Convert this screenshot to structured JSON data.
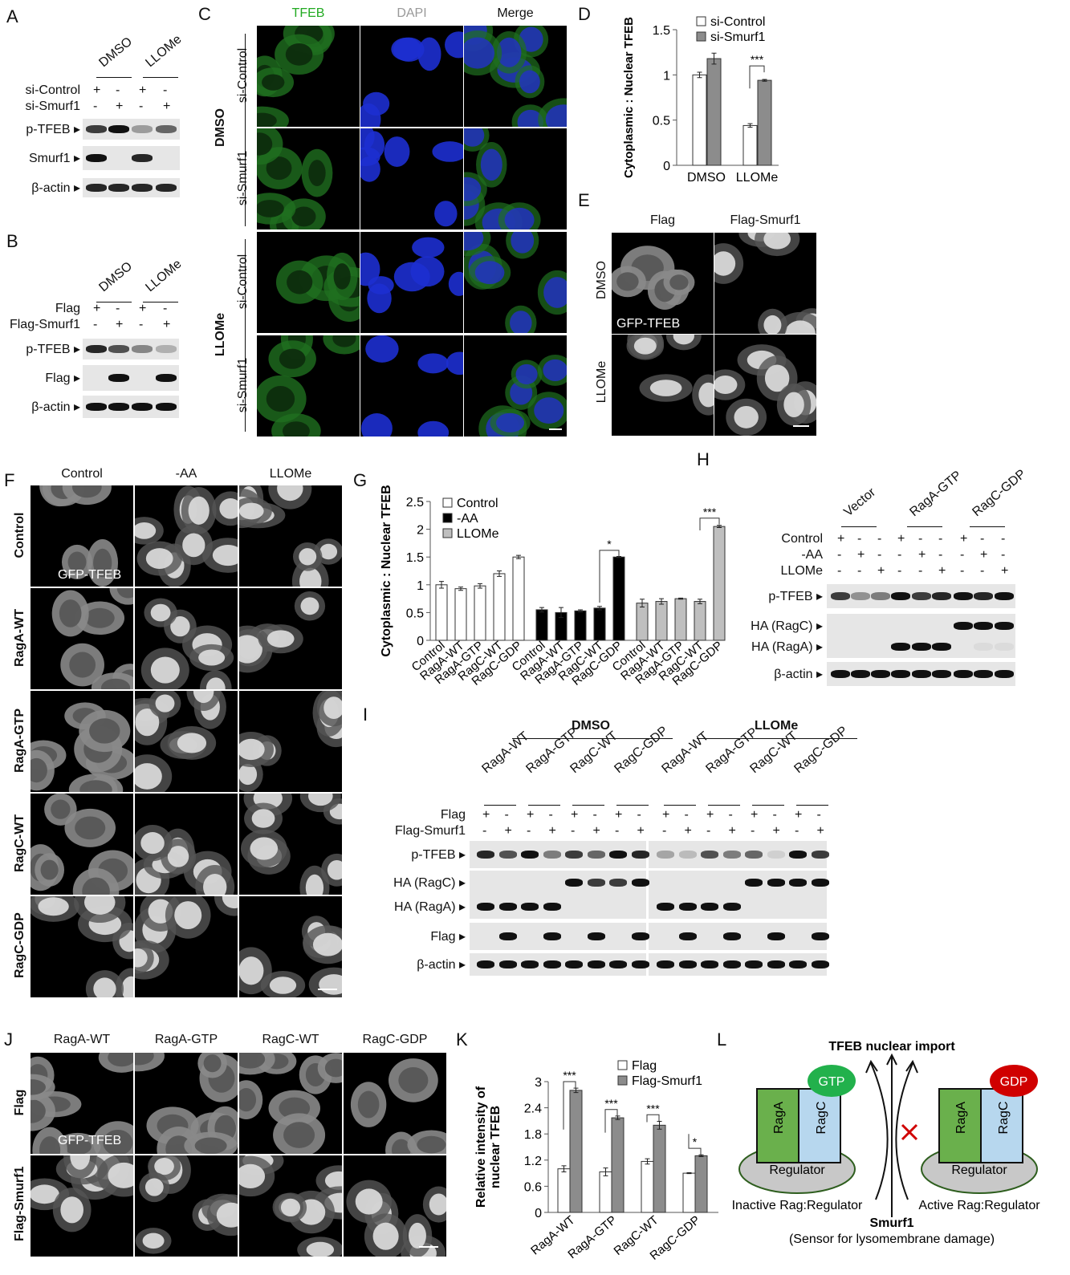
{
  "panels": {
    "A": "A",
    "B": "B",
    "C": "C",
    "D": "D",
    "E": "E",
    "F": "F",
    "G": "G",
    "H": "H",
    "I": "I",
    "J": "J",
    "K": "K",
    "L": "L"
  },
  "A": {
    "groups": [
      "DMSO",
      "LLOMe"
    ],
    "rows": [
      {
        "label": "si-Control",
        "signs": [
          "+",
          "-",
          "+",
          "-"
        ]
      },
      {
        "label": "si-Smurf1",
        "signs": [
          "-",
          "+",
          "-",
          "+"
        ]
      }
    ],
    "blots": [
      {
        "label": "p-TFEB",
        "bands": [
          0.8,
          1,
          0.35,
          0.6
        ]
      },
      {
        "label": "Smurf1",
        "bands": [
          1,
          0,
          0.9,
          0
        ]
      },
      {
        "label": "β-actin",
        "bands": [
          0.9,
          0.9,
          0.9,
          0.9
        ]
      }
    ]
  },
  "B": {
    "groups": [
      "DMSO",
      "LLOMe"
    ],
    "rows": [
      {
        "label": "Flag",
        "signs": [
          "+",
          "-",
          "+",
          "-"
        ]
      },
      {
        "label": "Flag-Smurf1",
        "signs": [
          "-",
          "+",
          "-",
          "+"
        ]
      }
    ],
    "blots": [
      {
        "label": "p-TFEB",
        "bands": [
          0.9,
          0.7,
          0.45,
          0.25
        ]
      },
      {
        "label": "Flag",
        "bands": [
          0,
          1,
          0,
          1
        ]
      },
      {
        "label": "β-actin",
        "bands": [
          1,
          1,
          1,
          1
        ]
      }
    ]
  },
  "C": {
    "columns": [
      {
        "label": "TFEB",
        "color": "#22aa22"
      },
      {
        "label": "DAPI",
        "color": "#999999"
      },
      {
        "label": "Merge",
        "color": "#111111"
      }
    ],
    "treatments": [
      "DMSO",
      "LLOMe"
    ],
    "rows": [
      "si-Control",
      "si-Smurf1",
      "si-Control",
      "si-Smurf1"
    ]
  },
  "E": {
    "columns": [
      "Flag",
      "Flag-Smurf1"
    ],
    "rows": [
      "DMSO",
      "LLOMe"
    ],
    "inset": "GFP-TFEB"
  },
  "F": {
    "columns": [
      "Control",
      "-AA",
      "LLOMe"
    ],
    "rows": [
      "Control",
      "RagA-WT",
      "RagA-GTP",
      "RagC-WT",
      "RagC-GDP"
    ],
    "inset": "GFP-TFEB"
  },
  "H": {
    "groups": [
      "Vector",
      "RagA-GTP",
      "RagC-GDP"
    ],
    "rows": [
      {
        "label": "Control",
        "signs": [
          "+",
          "-",
          "-",
          "+",
          "-",
          "-",
          "+",
          "-",
          "-"
        ]
      },
      {
        "label": "-AA",
        "signs": [
          "-",
          "+",
          "-",
          "-",
          "+",
          "-",
          "-",
          "+",
          "-"
        ]
      },
      {
        "label": "LLOMe",
        "signs": [
          "-",
          "-",
          "+",
          "-",
          "-",
          "+",
          "-",
          "-",
          "+"
        ]
      }
    ],
    "blots": [
      {
        "label": "p-TFEB",
        "bands": [
          0.8,
          0.4,
          0.5,
          1,
          0.8,
          0.9,
          1,
          0.9,
          1
        ]
      },
      {
        "label": "HA (RagC)",
        "bands": [
          0,
          0,
          0,
          0,
          0,
          0,
          1,
          1,
          1
        ]
      },
      {
        "label": "HA (RagA)",
        "bands": [
          0,
          0,
          0,
          1,
          1,
          1,
          0,
          0.05,
          0.05
        ]
      },
      {
        "label": "β-actin",
        "bands": [
          1,
          1,
          1,
          1,
          1,
          1,
          1,
          1,
          1
        ]
      }
    ]
  },
  "I": {
    "treatments": [
      "DMSO",
      "LLOMe"
    ],
    "constructs": [
      "RagA-WT",
      "RagA-GTP",
      "RagC-WT",
      "RagC-GDP",
      "RagA-WT",
      "RagA-GTP",
      "RagC-WT",
      "RagC-GDP"
    ],
    "rows": [
      {
        "label": "Flag",
        "signs": [
          "+",
          "-",
          "+",
          "-",
          "+",
          "-",
          "+",
          "-",
          "+",
          "-",
          "+",
          "-",
          "+",
          "-",
          "+",
          "-"
        ]
      },
      {
        "label": "Flag-Smurf1",
        "signs": [
          "-",
          "+",
          "-",
          "+",
          "-",
          "+",
          "-",
          "+",
          "-",
          "+",
          "-",
          "+",
          "-",
          "+",
          "-",
          "+"
        ]
      }
    ],
    "blots": [
      {
        "label": "p-TFEB",
        "bands": [
          0.9,
          0.7,
          1,
          0.5,
          0.8,
          0.6,
          1,
          0.9,
          0.3,
          0.2,
          0.7,
          0.5,
          0.6,
          0.1,
          1,
          0.8
        ]
      },
      {
        "label": "HA (RagC)",
        "bands": [
          0,
          0,
          0,
          0,
          1,
          0.8,
          0.8,
          1,
          0,
          0,
          0,
          0,
          1,
          1,
          1,
          1
        ]
      },
      {
        "label": "HA (RagA)",
        "bands": [
          1,
          1,
          1,
          1,
          0,
          0,
          0,
          0,
          1,
          1,
          1,
          1,
          0,
          0,
          0,
          0
        ]
      },
      {
        "label": "Flag",
        "bands": [
          0,
          1,
          0,
          1,
          0,
          1,
          0,
          1,
          0,
          1,
          0,
          1,
          0,
          1,
          0,
          1
        ]
      },
      {
        "label": "β-actin",
        "bands": [
          1,
          1,
          1,
          1,
          1,
          1,
          1,
          1,
          1,
          1,
          1,
          1,
          1,
          1,
          1,
          1
        ]
      }
    ]
  },
  "J": {
    "columns": [
      "RagA-WT",
      "RagA-GTP",
      "RagC-WT",
      "RagC-GDP"
    ],
    "rows": [
      "Flag",
      "Flag-Smurf1"
    ],
    "inset": "GFP-TFEB"
  },
  "L": {
    "title": "TFEB nuclear import",
    "left": {
      "a": "RagA",
      "c": "RagC",
      "nuc": "GTP",
      "base": "Regulator",
      "caption": "Inactive Rag:Regulator"
    },
    "right": {
      "a": "RagA",
      "c": "RagC",
      "nuc": "GDP",
      "base": "Regulator",
      "caption": "Active Rag:Regulator"
    },
    "smurf": "Smurf1",
    "sensor": "(Sensor for lysomembrane damage)",
    "colors": {
      "raga": "#6ab04c",
      "ragc": "#b7d7ee",
      "gtp": "#22b14c",
      "gdp": "#d00000",
      "regulator": "#c8c8c8",
      "block": "#d00000"
    }
  },
  "chart_data": [
    {
      "id": "D",
      "type": "bar",
      "ylabel": "Cytoplasmic : Nuclear TFEB",
      "categories": [
        "DMSO",
        "LLOMe"
      ],
      "ylim": [
        0,
        1.5
      ],
      "yticks": [
        "0",
        "0.5",
        "1",
        "1.5"
      ],
      "legend": "top-right",
      "series": [
        {
          "name": "si-Control",
          "color": "#ffffff",
          "values": [
            1.0,
            0.44
          ],
          "err": [
            0.03,
            0.02
          ]
        },
        {
          "name": "si-Smurf1",
          "color": "#8c8c8c",
          "values": [
            1.18,
            0.94
          ],
          "err": [
            0.06,
            0.01
          ]
        }
      ],
      "annotations": [
        {
          "category": "LLOMe",
          "text": "***"
        }
      ]
    },
    {
      "id": "G",
      "type": "bar",
      "ylabel": "Cytoplasmic : Nuclear TFEB",
      "categories": [
        "Control",
        "RagA-WT",
        "RagA-GTP",
        "RagC-WT",
        "RagC-GDP"
      ],
      "ylim": [
        0,
        2.5
      ],
      "yticks": [
        "0",
        "0.5",
        "1",
        "1.5",
        "2",
        "2.5"
      ],
      "legend": "top-left",
      "series": [
        {
          "name": "Control",
          "color": "#ffffff",
          "values": [
            1.0,
            0.93,
            0.98,
            1.2,
            1.5
          ],
          "err": [
            0.06,
            0.03,
            0.04,
            0.05,
            0.03
          ]
        },
        {
          "name": "-AA",
          "color": "#000000",
          "values": [
            0.55,
            0.5,
            0.53,
            0.58,
            1.5
          ],
          "err": [
            0.04,
            0.09,
            0.02,
            0.03,
            0.01
          ]
        },
        {
          "name": "LLOMe",
          "color": "#bfbfbf",
          "values": [
            0.67,
            0.7,
            0.75,
            0.7,
            2.05
          ],
          "err": [
            0.07,
            0.05,
            0.01,
            0.04,
            0.02
          ]
        }
      ],
      "annotations": [
        {
          "text": "*",
          "series": "-AA",
          "between": [
            "RagC-WT",
            "RagC-GDP"
          ]
        },
        {
          "text": "***",
          "series": "LLOMe",
          "between": [
            "RagC-WT",
            "RagC-GDP"
          ]
        }
      ]
    },
    {
      "id": "K",
      "type": "bar",
      "ylabel": "Relative intensity of nuclear TFEB",
      "categories": [
        "RagA-WT",
        "RagA-GTP",
        "RagC-WT",
        "RagC-GDP"
      ],
      "ylim": [
        0,
        3
      ],
      "yticks": [
        "0",
        "0.6",
        "1.2",
        "1.8",
        "2.4",
        "3"
      ],
      "legend": "top-right",
      "series": [
        {
          "name": "Flag",
          "color": "#ffffff",
          "values": [
            1.0,
            0.93,
            1.17,
            0.9
          ],
          "err": [
            0.07,
            0.09,
            0.06,
            0.01
          ]
        },
        {
          "name": "Flag-Smurf1",
          "color": "#8c8c8c",
          "values": [
            2.8,
            2.17,
            2.0,
            1.3
          ],
          "err": [
            0.05,
            0.04,
            0.09,
            0.02
          ]
        }
      ],
      "annotations": [
        {
          "text": "***"
        },
        {
          "text": "***"
        },
        {
          "text": "***"
        },
        {
          "text": "*"
        }
      ]
    }
  ]
}
